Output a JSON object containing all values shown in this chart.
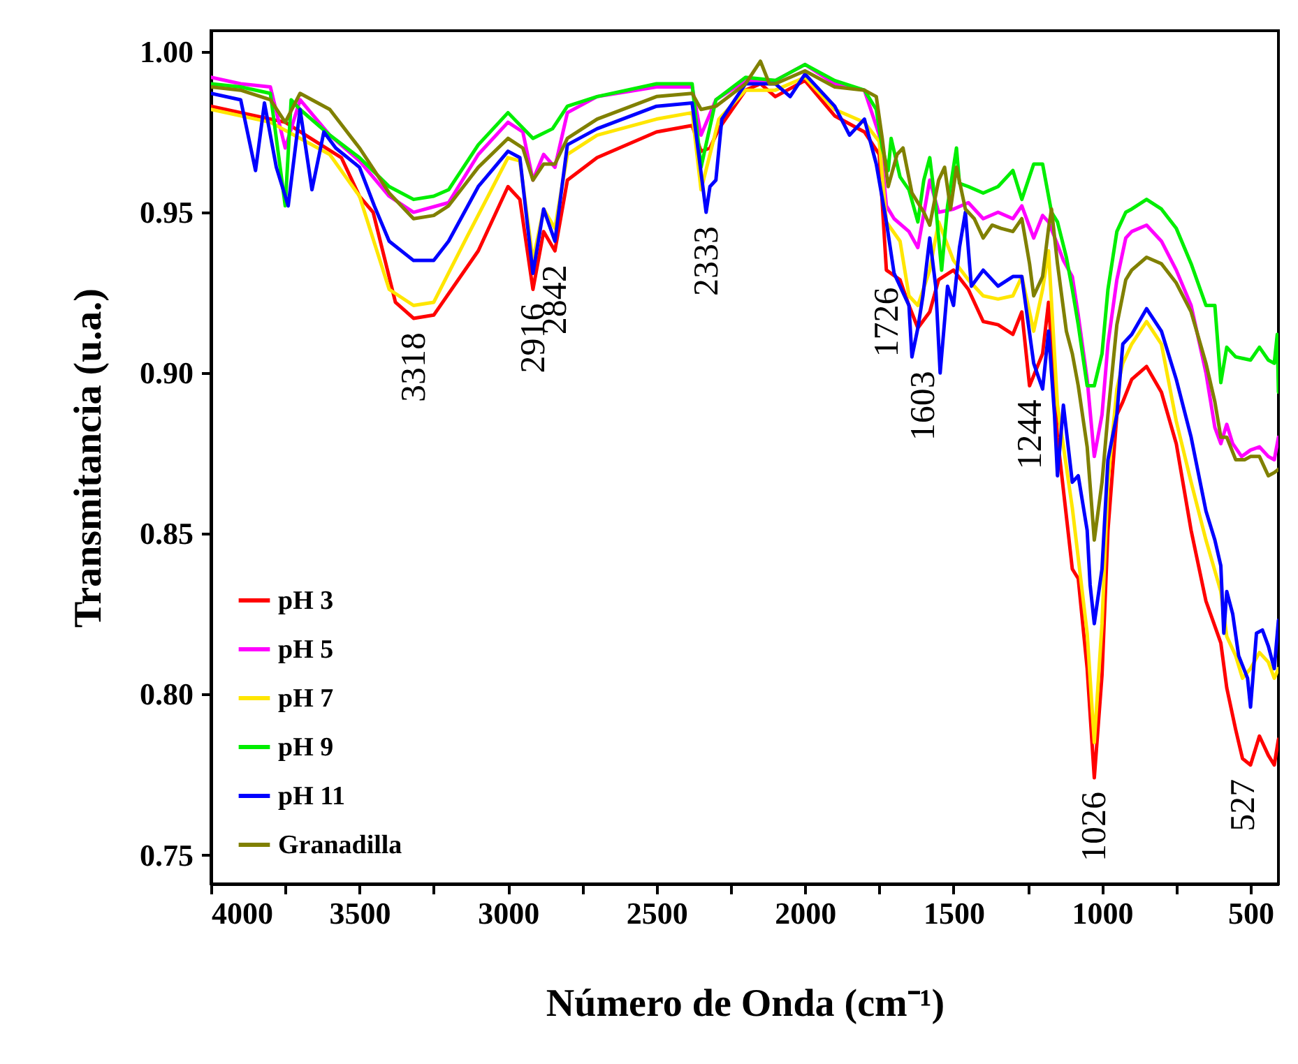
{
  "chart_data": {
    "type": "line",
    "xlabel": "Número de Onda (cm⁻¹)",
    "ylabel": "Transmitancia (u.a.)",
    "xlim": [
      4000,
      406
    ],
    "ylim": [
      0.741,
      1.0065
    ],
    "xticks": [
      4000,
      {
        "value": 3750,
        "label": null
      },
      3500,
      {
        "value": 3250,
        "label": null
      },
      3000,
      {
        "value": 2750,
        "label": null
      },
      2500,
      {
        "value": 2250,
        "label": null
      },
      2000,
      {
        "value": 1750,
        "label": null
      },
      1500,
      {
        "value": 1250,
        "label": null
      },
      1000,
      {
        "value": 750,
        "label": null
      },
      500
    ],
    "yticks": [
      {
        "value": 0.75,
        "label": "0.75"
      },
      {
        "value": 0.8,
        "label": "0.80"
      },
      {
        "value": 0.85,
        "label": "0.85"
      },
      {
        "value": 0.9,
        "label": "0.90"
      },
      {
        "value": 0.95,
        "label": "0.95"
      },
      {
        "value": 1,
        "label": "1.00"
      }
    ],
    "grid": false,
    "legend": "bottom left",
    "line_style": "solid",
    "marker": "none",
    "series": [
      {
        "name": "pH 3",
        "color": "#ff0000",
        "x": [
          4000,
          3750,
          3561,
          3500,
          3454,
          3379,
          3318,
          3250,
          3100,
          3000,
          2960,
          2916,
          2880,
          2842,
          2800,
          2700,
          2500,
          2380,
          2350,
          2320,
          2290,
          2200,
          2150,
          2100,
          2000,
          1900,
          1800,
          1750,
          1726,
          1680,
          1650,
          1620,
          1580,
          1550,
          1500,
          1450,
          1400,
          1350,
          1300,
          1270,
          1244,
          1200,
          1180,
          1150,
          1100,
          1080,
          1050,
          1026,
          1000,
          980,
          950,
          930,
          900,
          850,
          800,
          750,
          700,
          650,
          600,
          580,
          550,
          527,
          500,
          470,
          440,
          420,
          406
        ],
        "values": [
          0.983,
          0.978,
          0.967,
          0.955,
          0.95,
          0.922,
          0.917,
          0.918,
          0.938,
          0.958,
          0.954,
          0.926,
          0.944,
          0.938,
          0.96,
          0.967,
          0.975,
          0.977,
          0.969,
          0.97,
          0.976,
          0.988,
          0.99,
          0.986,
          0.991,
          0.98,
          0.975,
          0.968,
          0.932,
          0.929,
          0.921,
          0.914,
          0.919,
          0.929,
          0.932,
          0.926,
          0.916,
          0.915,
          0.912,
          0.919,
          0.896,
          0.906,
          0.922,
          0.88,
          0.839,
          0.836,
          0.808,
          0.774,
          0.806,
          0.851,
          0.887,
          0.891,
          0.898,
          0.902,
          0.894,
          0.878,
          0.851,
          0.829,
          0.816,
          0.802,
          0.789,
          0.78,
          0.778,
          0.787,
          0.781,
          0.778,
          0.786
        ]
      },
      {
        "name": "pH 5",
        "color": "#ff00ff",
        "x": [
          4000,
          3900,
          3800,
          3750,
          3700,
          3600,
          3500,
          3400,
          3318,
          3200,
          3100,
          3000,
          2950,
          2916,
          2880,
          2842,
          2800,
          2700,
          2500,
          2380,
          2350,
          2300,
          2200,
          2100,
          2000,
          1900,
          1800,
          1750,
          1726,
          1700,
          1650,
          1620,
          1580,
          1550,
          1500,
          1450,
          1400,
          1350,
          1300,
          1270,
          1230,
          1200,
          1180,
          1150,
          1130,
          1100,
          1080,
          1050,
          1026,
          1000,
          980,
          950,
          920,
          900,
          850,
          800,
          750,
          700,
          650,
          620,
          600,
          580,
          560,
          530,
          500,
          470,
          440,
          420,
          406
        ],
        "values": [
          0.992,
          0.99,
          0.989,
          0.97,
          0.985,
          0.974,
          0.966,
          0.955,
          0.95,
          0.953,
          0.968,
          0.978,
          0.975,
          0.96,
          0.968,
          0.964,
          0.981,
          0.986,
          0.989,
          0.989,
          0.974,
          0.985,
          0.991,
          0.991,
          0.996,
          0.99,
          0.988,
          0.974,
          0.952,
          0.948,
          0.944,
          0.939,
          0.96,
          0.95,
          0.951,
          0.953,
          0.948,
          0.95,
          0.948,
          0.952,
          0.942,
          0.949,
          0.947,
          0.94,
          0.935,
          0.93,
          0.918,
          0.898,
          0.874,
          0.887,
          0.909,
          0.929,
          0.942,
          0.944,
          0.946,
          0.941,
          0.932,
          0.921,
          0.9,
          0.883,
          0.878,
          0.884,
          0.878,
          0.874,
          0.876,
          0.877,
          0.874,
          0.873,
          0.88
        ]
      },
      {
        "name": "pH 7",
        "color": "#ffe600",
        "x": [
          4000,
          3800,
          3600,
          3500,
          3400,
          3318,
          3250,
          3140,
          3000,
          2960,
          2916,
          2880,
          2842,
          2800,
          2700,
          2500,
          2380,
          2350,
          2290,
          2200,
          2100,
          2000,
          1900,
          1800,
          1750,
          1726,
          1680,
          1650,
          1620,
          1580,
          1550,
          1500,
          1450,
          1400,
          1350,
          1300,
          1270,
          1230,
          1200,
          1180,
          1150,
          1100,
          1050,
          1026,
          1000,
          980,
          950,
          930,
          900,
          850,
          800,
          750,
          700,
          650,
          600,
          580,
          550,
          527,
          500,
          470,
          440,
          420,
          406
        ],
        "values": [
          0.982,
          0.978,
          0.968,
          0.955,
          0.926,
          0.921,
          0.922,
          0.942,
          0.967,
          0.966,
          0.935,
          0.951,
          0.945,
          0.968,
          0.974,
          0.979,
          0.981,
          0.957,
          0.979,
          0.988,
          0.988,
          0.992,
          0.982,
          0.978,
          0.972,
          0.947,
          0.941,
          0.924,
          0.921,
          0.932,
          0.947,
          0.935,
          0.929,
          0.924,
          0.923,
          0.924,
          0.93,
          0.913,
          0.926,
          0.938,
          0.89,
          0.858,
          0.819,
          0.785,
          0.822,
          0.866,
          0.895,
          0.903,
          0.909,
          0.916,
          0.909,
          0.885,
          0.866,
          0.848,
          0.832,
          0.818,
          0.812,
          0.805,
          0.808,
          0.813,
          0.81,
          0.805,
          0.808
        ]
      },
      {
        "name": "pH 9",
        "color": "#00ee00",
        "x": [
          4000,
          3900,
          3800,
          3750,
          3730,
          3700,
          3600,
          3500,
          3400,
          3318,
          3250,
          3200,
          3100,
          3000,
          2916,
          2850,
          2800,
          2700,
          2500,
          2380,
          2350,
          2300,
          2200,
          2100,
          2000,
          1900,
          1800,
          1760,
          1740,
          1720,
          1710,
          1680,
          1650,
          1620,
          1600,
          1580,
          1560,
          1540,
          1520,
          1490,
          1480,
          1450,
          1400,
          1350,
          1300,
          1270,
          1230,
          1200,
          1170,
          1150,
          1120,
          1100,
          1080,
          1050,
          1026,
          1000,
          980,
          950,
          920,
          900,
          850,
          800,
          750,
          700,
          650,
          620,
          600,
          580,
          550,
          500,
          470,
          440,
          420,
          410,
          406
        ],
        "values": [
          0.99,
          0.989,
          0.987,
          0.952,
          0.985,
          0.982,
          0.974,
          0.967,
          0.958,
          0.954,
          0.955,
          0.957,
          0.971,
          0.981,
          0.973,
          0.976,
          0.983,
          0.986,
          0.99,
          0.99,
          0.964,
          0.985,
          0.992,
          0.991,
          0.996,
          0.991,
          0.988,
          0.982,
          0.97,
          0.963,
          0.973,
          0.961,
          0.957,
          0.947,
          0.96,
          0.967,
          0.952,
          0.932,
          0.952,
          0.97,
          0.959,
          0.958,
          0.956,
          0.958,
          0.963,
          0.954,
          0.965,
          0.965,
          0.95,
          0.947,
          0.936,
          0.926,
          0.915,
          0.896,
          0.896,
          0.906,
          0.926,
          0.944,
          0.95,
          0.951,
          0.954,
          0.951,
          0.945,
          0.934,
          0.921,
          0.921,
          0.897,
          0.908,
          0.905,
          0.904,
          0.908,
          0.904,
          0.903,
          0.912,
          0.894
        ]
      },
      {
        "name": "pH 11",
        "color": "#0000ff",
        "x": [
          4000,
          3900,
          3850,
          3820,
          3780,
          3740,
          3700,
          3660,
          3620,
          3580,
          3500,
          3450,
          3400,
          3318,
          3250,
          3200,
          3100,
          3000,
          2960,
          2916,
          2880,
          2842,
          2800,
          2700,
          2500,
          2380,
          2333,
          2320,
          2300,
          2280,
          2200,
          2100,
          2050,
          2000,
          1900,
          1850,
          1800,
          1760,
          1726,
          1700,
          1680,
          1650,
          1640,
          1620,
          1603,
          1580,
          1560,
          1545,
          1520,
          1500,
          1480,
          1460,
          1440,
          1400,
          1350,
          1300,
          1270,
          1230,
          1200,
          1180,
          1160,
          1150,
          1130,
          1100,
          1080,
          1050,
          1040,
          1026,
          1000,
          980,
          950,
          930,
          900,
          850,
          800,
          750,
          700,
          650,
          620,
          600,
          590,
          580,
          560,
          540,
          510,
          500,
          480,
          460,
          440,
          420,
          406
        ],
        "values": [
          0.987,
          0.985,
          0.963,
          0.984,
          0.964,
          0.952,
          0.982,
          0.957,
          0.975,
          0.97,
          0.964,
          0.952,
          0.941,
          0.935,
          0.935,
          0.941,
          0.958,
          0.969,
          0.967,
          0.931,
          0.951,
          0.941,
          0.971,
          0.976,
          0.983,
          0.984,
          0.95,
          0.958,
          0.96,
          0.979,
          0.99,
          0.99,
          0.986,
          0.993,
          0.983,
          0.974,
          0.979,
          0.965,
          0.947,
          0.931,
          0.927,
          0.921,
          0.905,
          0.914,
          0.924,
          0.942,
          0.927,
          0.9,
          0.927,
          0.921,
          0.939,
          0.95,
          0.927,
          0.932,
          0.927,
          0.93,
          0.93,
          0.903,
          0.895,
          0.913,
          0.887,
          0.868,
          0.89,
          0.866,
          0.868,
          0.851,
          0.834,
          0.822,
          0.839,
          0.873,
          0.887,
          0.909,
          0.912,
          0.92,
          0.913,
          0.898,
          0.88,
          0.857,
          0.848,
          0.84,
          0.819,
          0.832,
          0.825,
          0.812,
          0.805,
          0.796,
          0.819,
          0.82,
          0.815,
          0.808,
          0.823
        ]
      },
      {
        "name": "Granadilla",
        "color": "#808000",
        "x": [
          4000,
          3900,
          3800,
          3750,
          3700,
          3600,
          3500,
          3400,
          3318,
          3250,
          3200,
          3100,
          3000,
          2950,
          2916,
          2880,
          2842,
          2800,
          2700,
          2500,
          2380,
          2350,
          2300,
          2200,
          2150,
          2120,
          2100,
          2000,
          1900,
          1800,
          1760,
          1740,
          1720,
          1690,
          1670,
          1640,
          1600,
          1580,
          1550,
          1530,
          1510,
          1490,
          1460,
          1430,
          1400,
          1370,
          1340,
          1300,
          1270,
          1244,
          1230,
          1200,
          1180,
          1170,
          1150,
          1120,
          1100,
          1080,
          1050,
          1026,
          1000,
          980,
          950,
          920,
          900,
          850,
          800,
          750,
          700,
          650,
          620,
          600,
          580,
          550,
          520,
          500,
          470,
          440,
          420,
          406
        ],
        "values": [
          0.989,
          0.988,
          0.985,
          0.978,
          0.987,
          0.982,
          0.97,
          0.956,
          0.948,
          0.949,
          0.952,
          0.964,
          0.973,
          0.97,
          0.96,
          0.965,
          0.965,
          0.973,
          0.979,
          0.986,
          0.987,
          0.982,
          0.983,
          0.99,
          0.997,
          0.99,
          0.99,
          0.994,
          0.989,
          0.988,
          0.986,
          0.973,
          0.958,
          0.968,
          0.97,
          0.956,
          0.95,
          0.946,
          0.96,
          0.964,
          0.951,
          0.964,
          0.951,
          0.948,
          0.942,
          0.946,
          0.945,
          0.944,
          0.948,
          0.934,
          0.924,
          0.93,
          0.945,
          0.951,
          0.934,
          0.913,
          0.906,
          0.896,
          0.877,
          0.848,
          0.866,
          0.887,
          0.915,
          0.929,
          0.932,
          0.936,
          0.934,
          0.928,
          0.919,
          0.903,
          0.891,
          0.88,
          0.88,
          0.873,
          0.873,
          0.874,
          0.874,
          0.868,
          0.869,
          0.87
        ]
      }
    ],
    "annotations": [
      {
        "text": "3318",
        "x": 3318,
        "y": 0.917
      },
      {
        "text": "2916",
        "x": 2916,
        "y": 0.926
      },
      {
        "text": "2842",
        "x": 2842,
        "y": 0.938
      },
      {
        "text": "2333",
        "x": 2333,
        "y": 0.95
      },
      {
        "text": "1726",
        "x": 1726,
        "y": 0.932
      },
      {
        "text": "1603",
        "x": 1603,
        "y": 0.924
      },
      {
        "text": "1244",
        "x": 1244,
        "y": 0.896
      },
      {
        "text": "1026",
        "x": 1026,
        "y": 0.774
      },
      {
        "text": "527",
        "x": 527,
        "y": 0.78
      }
    ]
  }
}
